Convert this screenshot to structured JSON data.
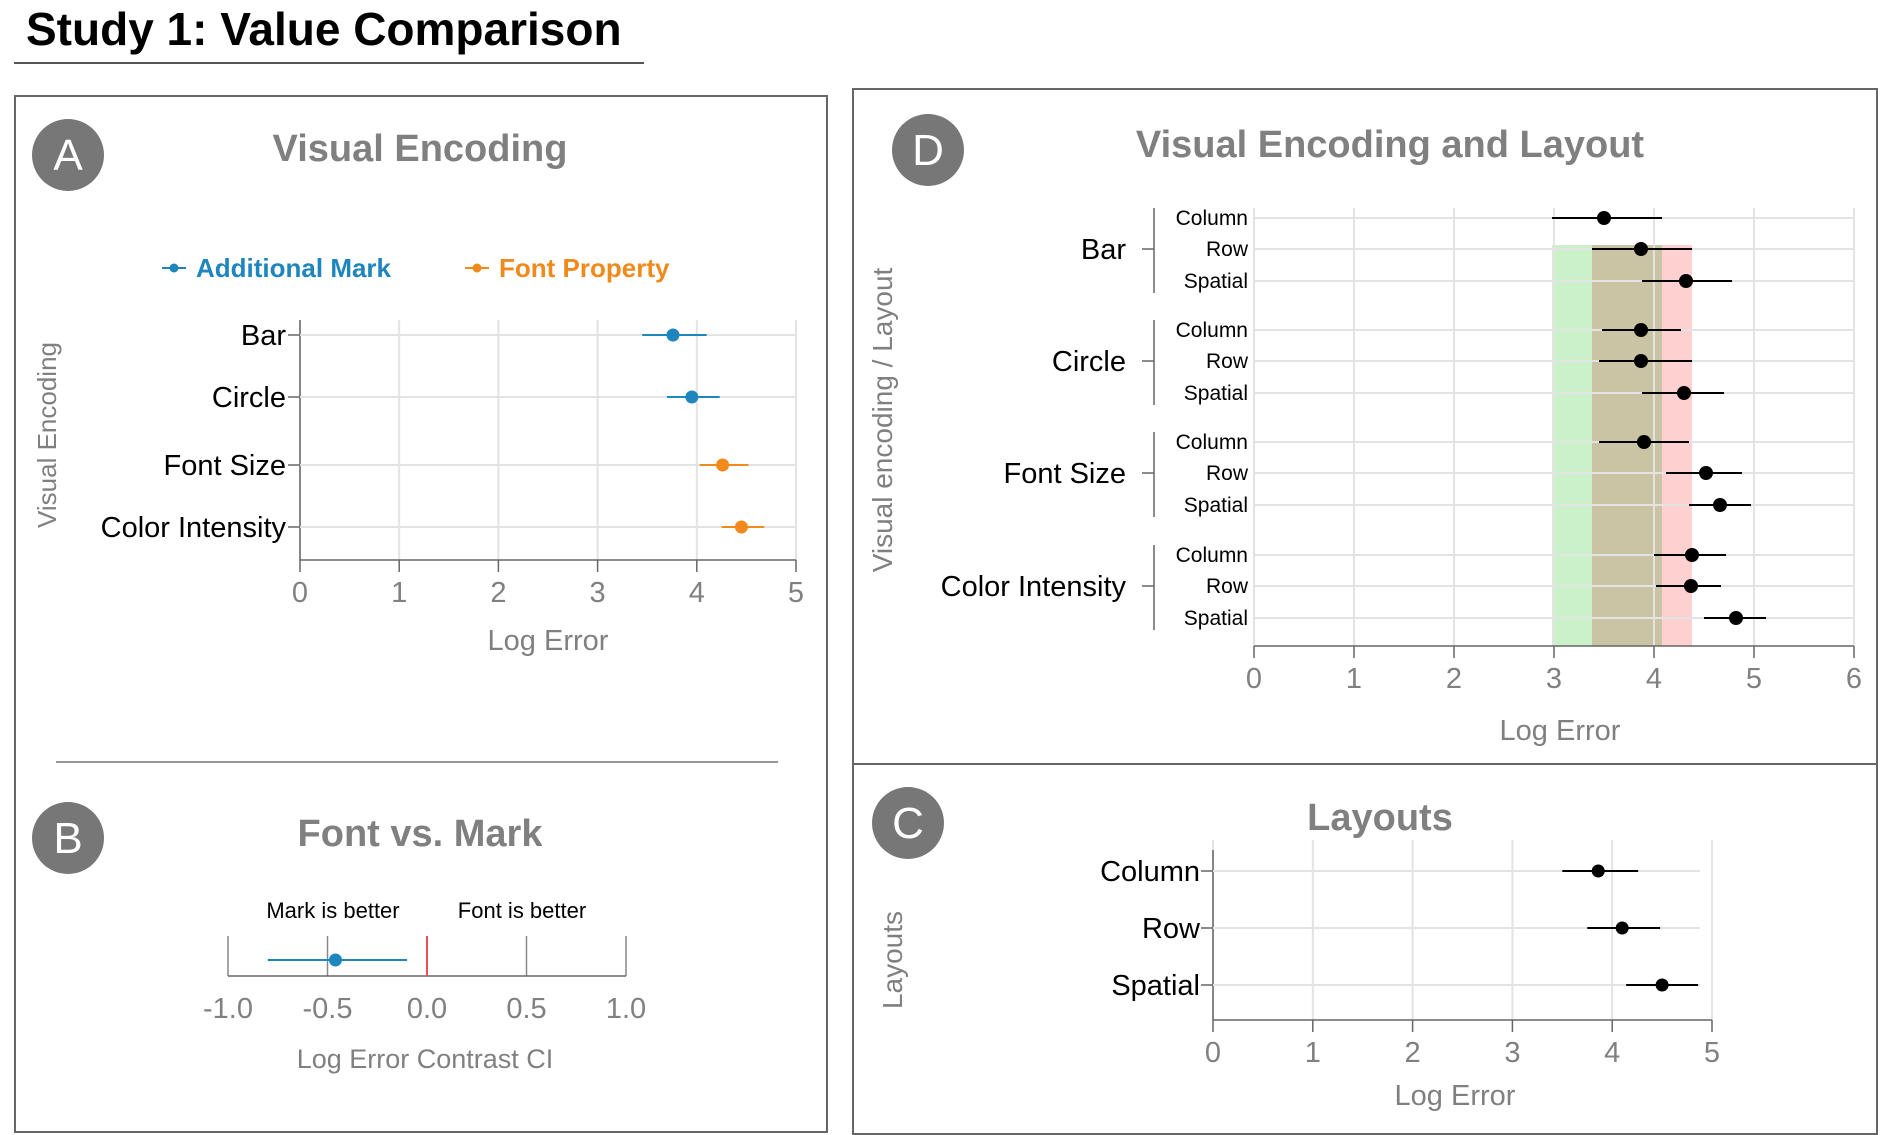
{
  "page_title": "Study 1: Value Comparison",
  "colors": {
    "mark": "#1f86bd",
    "font": "#f08a1c",
    "dot": "#000000",
    "badge": "#777777",
    "panel_title": "#808080",
    "axis_text": "#808080",
    "grid": "#e3e3e3",
    "zero_line": "#e8505b",
    "band_green": "#a6e8a6",
    "band_red": "#ffaaaa"
  },
  "chart_data": [
    {
      "id": "A",
      "type": "scatter",
      "subtype": "point-range",
      "badge": "A",
      "title": "Visual Encoding",
      "xlabel": "Log Error",
      "ylabel": "Visual Encoding",
      "xlim": [
        0,
        5
      ],
      "xticks": [
        "0",
        "1",
        "2",
        "3",
        "4",
        "5"
      ],
      "grid": true,
      "legend_position": "top",
      "legend": [
        "Additional Mark",
        "Font Property"
      ],
      "categories": [
        "Bar",
        "Circle",
        "Font Size",
        "Color Intensity"
      ],
      "points": [
        {
          "label": "Bar",
          "group": "Additional Mark",
          "mean": 3.76,
          "lo": 3.45,
          "hi": 4.1
        },
        {
          "label": "Circle",
          "group": "Additional Mark",
          "mean": 3.95,
          "lo": 3.7,
          "hi": 4.23
        },
        {
          "label": "Font Size",
          "group": "Font Property",
          "mean": 4.26,
          "lo": 4.03,
          "hi": 4.52
        },
        {
          "label": "Color Intensity",
          "group": "Font Property",
          "mean": 4.45,
          "lo": 4.25,
          "hi": 4.68
        }
      ]
    },
    {
      "id": "B",
      "type": "scatter",
      "subtype": "contrast-interval",
      "badge": "B",
      "title": "Font vs. Mark",
      "xlabel": "Log Error Contrast CI",
      "xlim": [
        -1.0,
        1.0
      ],
      "xticks": [
        "-1.0",
        "-0.5",
        "0.0",
        "0.5",
        "1.0"
      ],
      "annotations": [
        "Mark is better",
        "Font is better"
      ],
      "points": [
        {
          "mean": -0.46,
          "lo": -0.8,
          "hi": -0.1
        }
      ]
    },
    {
      "id": "D",
      "type": "scatter",
      "subtype": "point-range-grouped",
      "badge": "D",
      "title": "Visual Encoding and Layout",
      "xlabel": "Log Error",
      "ylabel": "Visual encoding / Layout",
      "xlim": [
        0,
        6
      ],
      "xticks": [
        "0",
        "1",
        "2",
        "3",
        "4",
        "5",
        "6"
      ],
      "grid": true,
      "bands": [
        {
          "color": "green",
          "from": 2.98,
          "to": 4.08
        },
        {
          "color": "red",
          "from": 3.38,
          "to": 4.38
        }
      ],
      "groups": [
        {
          "name": "Bar",
          "rows": [
            {
              "label": "Column",
              "mean": 3.5,
              "lo": 2.98,
              "hi": 4.08
            },
            {
              "label": "Row",
              "mean": 3.87,
              "lo": 3.38,
              "hi": 4.38
            },
            {
              "label": "Spatial",
              "mean": 4.32,
              "lo": 3.88,
              "hi": 4.78
            }
          ]
        },
        {
          "name": "Circle",
          "rows": [
            {
              "label": "Column",
              "mean": 3.87,
              "lo": 3.48,
              "hi": 4.27
            },
            {
              "label": "Row",
              "mean": 3.87,
              "lo": 3.45,
              "hi": 4.38
            },
            {
              "label": "Spatial",
              "mean": 4.3,
              "lo": 3.88,
              "hi": 4.7
            }
          ]
        },
        {
          "name": "Font Size",
          "rows": [
            {
              "label": "Column",
              "mean": 3.9,
              "lo": 3.45,
              "hi": 4.35
            },
            {
              "label": "Row",
              "mean": 4.52,
              "lo": 4.12,
              "hi": 4.88
            },
            {
              "label": "Spatial",
              "mean": 4.66,
              "lo": 4.35,
              "hi": 4.97
            }
          ]
        },
        {
          "name": "Color Intensity",
          "rows": [
            {
              "label": "Column",
              "mean": 4.38,
              "lo": 4.0,
              "hi": 4.72
            },
            {
              "label": "Row",
              "mean": 4.37,
              "lo": 4.02,
              "hi": 4.67
            },
            {
              "label": "Spatial",
              "mean": 4.82,
              "lo": 4.5,
              "hi": 5.12
            }
          ]
        }
      ]
    },
    {
      "id": "C",
      "type": "scatter",
      "subtype": "point-range",
      "badge": "C",
      "title": "Layouts",
      "xlabel": "Log Error",
      "ylabel": "Layouts",
      "xlim": [
        0,
        5
      ],
      "xticks": [
        "0",
        "1",
        "2",
        "3",
        "4",
        "5"
      ],
      "grid": true,
      "categories": [
        "Column",
        "Row",
        "Spatial"
      ],
      "points": [
        {
          "label": "Column",
          "mean": 3.86,
          "lo": 3.5,
          "hi": 4.26
        },
        {
          "label": "Row",
          "mean": 4.1,
          "lo": 3.75,
          "hi": 4.48
        },
        {
          "label": "Spatial",
          "mean": 4.5,
          "lo": 4.14,
          "hi": 4.86
        }
      ]
    }
  ]
}
